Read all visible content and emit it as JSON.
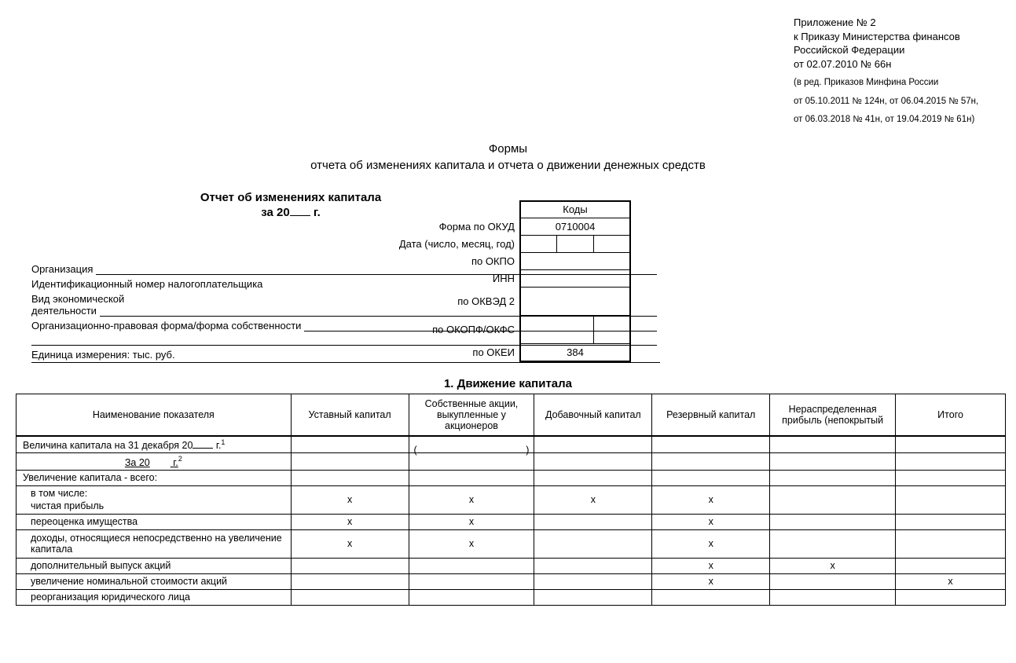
{
  "annex": {
    "line1": "Приложение № 2",
    "line2": "к Приказу Министерства финансов",
    "line3": "Российской Федерации",
    "line4": "от 02.07.2010 № 66н",
    "small1": "(в ред. Приказов Минфина России",
    "small2": "от 05.10.2011 № 124н, от 06.04.2015 № 57н,",
    "small3": "от 06.03.2018 № 41н, от 19.04.2019 № 61н)"
  },
  "docTitle": {
    "line1": "Формы",
    "line2": "отчета об изменениях капитала и отчета о движении денежных средств"
  },
  "reportHeader": {
    "title": "Отчет об изменениях капитала",
    "periodPrefix": "за 20",
    "periodSuffix": "г."
  },
  "codes": {
    "header": "Коды",
    "okudLabel": "Форма по ОКУД",
    "okud": "0710004",
    "dateLabel": "Дата (число, месяц, год)",
    "okpoLabel": "по ОКПО",
    "innLabel": "ИНН",
    "okvedLabel": "по ОКВЭД 2",
    "okopfLabel": "по ОКОПФ/ОКФС",
    "okeiLabel": "по ОКЕИ",
    "okei": "384"
  },
  "meta": {
    "org": "Организация",
    "inn": "Идентификационный номер налогоплательщика",
    "activityLabel1": "Вид экономической",
    "activityLabel2": "деятельности",
    "legalForm": "Организационно-правовая форма/форма собственности",
    "unit": "Единица измерения: тыс. руб."
  },
  "section1": {
    "title": "1. Движение капитала",
    "columns": [
      "Наименование показателя",
      "Уставный капитал",
      "Собственные акции, выкупленные у акционеров",
      "Добавочный капитал",
      "Резервный капитал",
      "Нераспределенная прибыль (непокрытый",
      "Итого"
    ],
    "rows": [
      {
        "label_pre": "Величина капитала на 31 декабря  20",
        "label_suf": "г.",
        "sup": "1",
        "c2": "",
        "c3_open": "(",
        "c3_close": ")",
        "c4": "",
        "c5": "",
        "c6": "",
        "c7": "",
        "thick": true,
        "left": true
      },
      {
        "label_pre_u": "За 20",
        "label_suf_u": "г.",
        "sup": "2",
        "center_u": true
      },
      {
        "label": "Увеличение капитала - всего:",
        "left": true
      },
      {
        "label": "в том числе:",
        "indent": true,
        "nosplit": true
      },
      {
        "label": "чистая прибыль",
        "indent": true,
        "c2": "х",
        "c3": "х",
        "c4": "х",
        "c5": "х"
      },
      {
        "label": "переоценка имущества",
        "indent": true,
        "c2": "х",
        "c3": "х",
        "c5": "х"
      },
      {
        "label": "доходы, относящиеся непосредственно на увеличение капитала",
        "indent": true,
        "c2": "х",
        "c3": "х",
        "c5": "х",
        "tall": true
      },
      {
        "label": "дополнительный выпуск акций",
        "indent": true,
        "c5": "х",
        "c6": "х"
      },
      {
        "label": "увеличение номинальной стоимости акций",
        "indent": true,
        "c5": "х",
        "c7": "х"
      },
      {
        "label": "реорганизация юридического лица",
        "indent": true
      }
    ]
  },
  "style": {
    "x_mark": "х"
  }
}
